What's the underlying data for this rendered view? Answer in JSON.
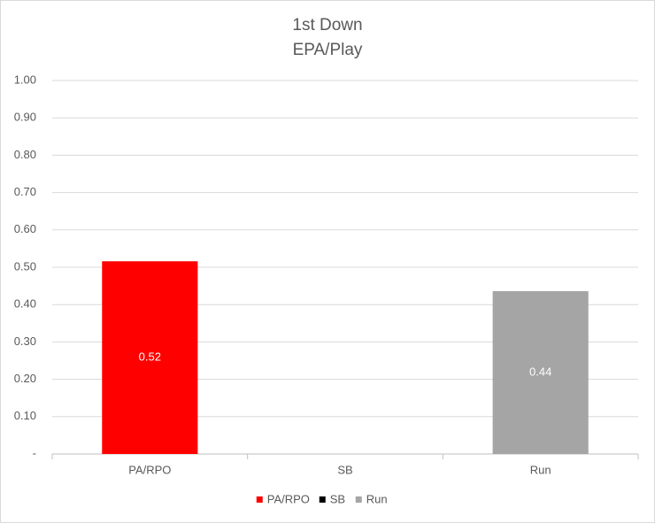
{
  "chart_data": {
    "type": "bar",
    "title": [
      "1st Down",
      "EPA/Play"
    ],
    "categories": [
      "PA/RPO",
      "SB",
      "Run"
    ],
    "series": [
      {
        "name": "PA/RPO",
        "color": "#ff0000",
        "values": [
          0.516,
          null,
          null
        ],
        "value_labels": [
          "0.52",
          null,
          null
        ]
      },
      {
        "name": "SB",
        "color": "#000000",
        "values": [
          null,
          null,
          null
        ]
      },
      {
        "name": "Run",
        "color": "#a5a5a5",
        "values": [
          null,
          null,
          0.436
        ],
        "value_labels": [
          null,
          null,
          "0.44"
        ]
      }
    ],
    "ylim": [
      0,
      1
    ],
    "yticks": [
      {
        "value": 0,
        "label": "-"
      },
      {
        "value": 0.1,
        "label": "0.10"
      },
      {
        "value": 0.2,
        "label": "0.20"
      },
      {
        "value": 0.3,
        "label": "0.30"
      },
      {
        "value": 0.4,
        "label": "0.40"
      },
      {
        "value": 0.5,
        "label": "0.50"
      },
      {
        "value": 0.6,
        "label": "0.60"
      },
      {
        "value": 0.7,
        "label": "0.70"
      },
      {
        "value": 0.8,
        "label": "0.80"
      },
      {
        "value": 0.9,
        "label": "0.90"
      },
      {
        "value": 1,
        "label": "1.00"
      }
    ],
    "grid": true,
    "legend": "bottom"
  }
}
